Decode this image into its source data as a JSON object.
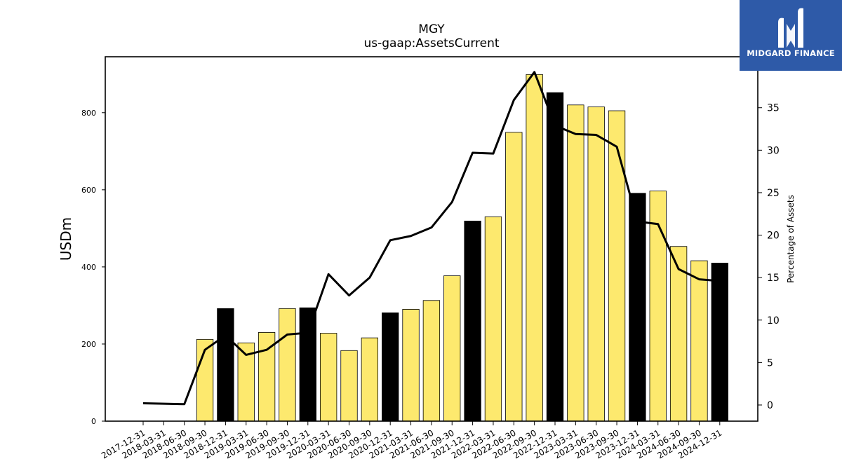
{
  "chart_data": {
    "type": "bar",
    "title": "MGY",
    "subtitle": "us-gaap:AssetsCurrent",
    "ylabel": "USDm",
    "y2label": "Percentage of Assets",
    "ylim": [
      0,
      945
    ],
    "y2lim": [
      -1.9,
      41.0
    ],
    "yticks": [
      0,
      200,
      400,
      600,
      800
    ],
    "y2ticks": [
      0,
      5,
      10,
      15,
      20,
      25,
      30,
      35
    ],
    "categories": [
      "2017-12-31",
      "2018-03-31",
      "2018-06-30",
      "2018-09-30",
      "2018-12-31",
      "2019-03-31",
      "2019-06-30",
      "2019-09-30",
      "2019-12-31",
      "2020-03-31",
      "2020-06-30",
      "2020-09-30",
      "2020-12-31",
      "2021-03-31",
      "2021-06-30",
      "2021-09-30",
      "2021-12-31",
      "2022-03-31",
      "2022-06-30",
      "2022-09-30",
      "2022-12-31",
      "2023-03-31",
      "2023-06-30",
      "2023-09-30",
      "2023-12-31",
      "2024-03-31",
      "2024-06-30",
      "2024-09-30",
      "2024-12-31"
    ],
    "series": [
      {
        "kind": "bar",
        "values": [
          null,
          null,
          null,
          212,
          292,
          203,
          230,
          292,
          294,
          228,
          183,
          216,
          281,
          290,
          313,
          377,
          519,
          530,
          749,
          899,
          852,
          820,
          815,
          805,
          591,
          597,
          453,
          416,
          410
        ],
        "highlight": [
          false,
          false,
          false,
          false,
          true,
          false,
          false,
          false,
          true,
          false,
          false,
          false,
          true,
          false,
          false,
          false,
          true,
          false,
          false,
          false,
          true,
          false,
          false,
          false,
          true,
          false,
          false,
          false,
          true
        ],
        "color": "#fde96e",
        "highlight_color": "#000000"
      },
      {
        "kind": "line",
        "axis": "right",
        "color": "#000000",
        "values": [
          0.2,
          0.15,
          0.1,
          6.5,
          8.2,
          5.9,
          6.5,
          8.3,
          8.5,
          15.4,
          12.9,
          15.0,
          19.4,
          19.9,
          20.9,
          23.9,
          29.7,
          29.6,
          35.9,
          39.2,
          32.9,
          31.9,
          31.8,
          30.4,
          21.6,
          21.3,
          16.0,
          14.8,
          14.6
        ]
      }
    ]
  },
  "logo": {
    "text": "MIDGARD FINANCE",
    "mark": "M-logo-mark"
  }
}
